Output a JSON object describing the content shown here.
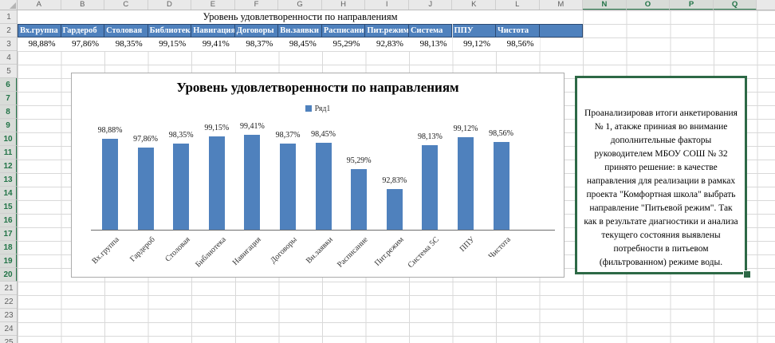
{
  "colors": {
    "accent_blue": "#4F81BD",
    "selection_green": "#217346",
    "textbox_border_green": "#2D6946"
  },
  "spreadsheet": {
    "columns": [
      "A",
      "B",
      "C",
      "D",
      "E",
      "F",
      "G",
      "H",
      "I",
      "J",
      "K",
      "L",
      "M",
      "N",
      "O",
      "P",
      "Q",
      "R"
    ],
    "selected_columns": [
      "N",
      "O",
      "P",
      "Q"
    ],
    "row_count": 25,
    "selected_rows_from": 6,
    "selected_rows_to": 20,
    "title_row": "Уровень удовлетворенности по направлениям",
    "table": {
      "headers": [
        "Вх.группа",
        "Гардероб",
        "Столовая",
        "Библиотека",
        "Навигация",
        "Договоры",
        "Вн.заявки",
        "Расписание",
        "Пит.режим",
        "Система",
        "ППУ",
        "Чистота",
        ""
      ],
      "values": [
        "98,88%",
        "97,86%",
        "98,35%",
        "99,15%",
        "99,41%",
        "98,37%",
        "98,45%",
        "95,29%",
        "92,83%",
        "98,13%",
        "99,12%",
        "98,56%"
      ]
    }
  },
  "chart_data": {
    "type": "bar",
    "title": "Уровень удовлетворенности по направлениям",
    "legend_entries": [
      "Ряд1"
    ],
    "legend_position": "top",
    "categories": [
      "Вх.группа",
      "Гардероб",
      "Столовая",
      "Библиотека",
      "Навигация",
      "Договоры",
      "Вн.заявки",
      "Расписание",
      "Пит.режим",
      "Система 5С",
      "ППУ",
      "Чистота"
    ],
    "values": [
      98.88,
      97.86,
      98.35,
      99.15,
      99.41,
      98.37,
      98.45,
      95.29,
      92.83,
      98.13,
      99.12,
      98.56
    ],
    "data_labels": [
      "98,88%",
      "97,86%",
      "98,35%",
      "99,15%",
      "99,41%",
      "98,37%",
      "98,45%",
      "95,29%",
      "92,83%",
      "98,13%",
      "99,12%",
      "98,56%"
    ],
    "xlabel": "",
    "ylabel": "",
    "ylim": [
      88,
      101
    ],
    "grid": false,
    "bar_color": "#4F81BD"
  },
  "textbox": {
    "text": "Проанализировав итоги анкетирования № 1, атакже приниая во внимание дополнительные факторы руководителем МБОУ СОШ № 32 принято решение: в качестве направления для реализации в рамках проекта \"Комфортная школа\" выбрать направление \"Питьевой режим\". Так как в результате диагностики и анализа текущего состояния выявлены потребности в питьевом (фильтрованном) режиме воды."
  }
}
